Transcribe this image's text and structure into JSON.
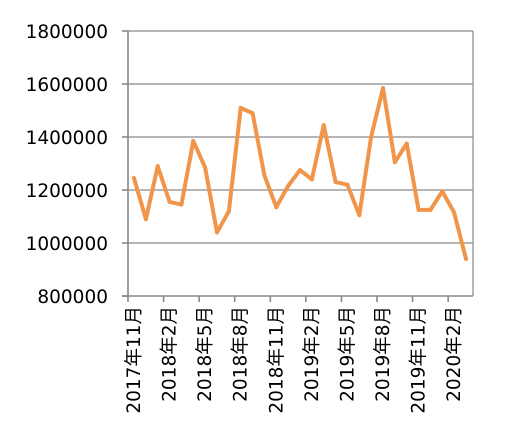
{
  "chart_data": {
    "type": "line",
    "title": "",
    "xlabel": "",
    "ylabel": "",
    "grid": "horizontal",
    "legend": "none",
    "ylim": [
      800000,
      1800000
    ],
    "y_ticks": [
      "800000",
      "1000000",
      "1200000",
      "1400000",
      "1600000",
      "1800000"
    ],
    "x_tick_labels": [
      "2017年11月",
      "2018年2月",
      "2018年5月",
      "2018年8月",
      "2018年11月",
      "2019年2月",
      "2019年5月",
      "2019年8月",
      "2019年11月",
      "2020年2月"
    ],
    "categories": [
      "2017年11月",
      "2017年12月",
      "2018年1月",
      "2018年2月",
      "2018年3月",
      "2018年4月",
      "2018年5月",
      "2018年6月",
      "2018年7月",
      "2018年8月",
      "2018年9月",
      "2018年10月",
      "2018年11月",
      "2018年12月",
      "2019年1月",
      "2019年2月",
      "2019年3月",
      "2019年4月",
      "2019年5月",
      "2019年6月",
      "2019年7月",
      "2019年8月",
      "2019年9月",
      "2019年10月",
      "2019年11月",
      "2019年12月",
      "2020年1月",
      "2020年2月",
      "2020年3月"
    ],
    "series": [
      {
        "values": [
          1245000,
          1090000,
          1290000,
          1155000,
          1145000,
          1385000,
          1285000,
          1040000,
          1120000,
          1510000,
          1490000,
          1255000,
          1135000,
          1215000,
          1275000,
          1240000,
          1445000,
          1230000,
          1220000,
          1105000,
          1400000,
          1585000,
          1305000,
          1375000,
          1125000,
          1125000,
          1195000,
          1115000,
          940000
        ],
        "color": "#f0954a"
      }
    ]
  }
}
